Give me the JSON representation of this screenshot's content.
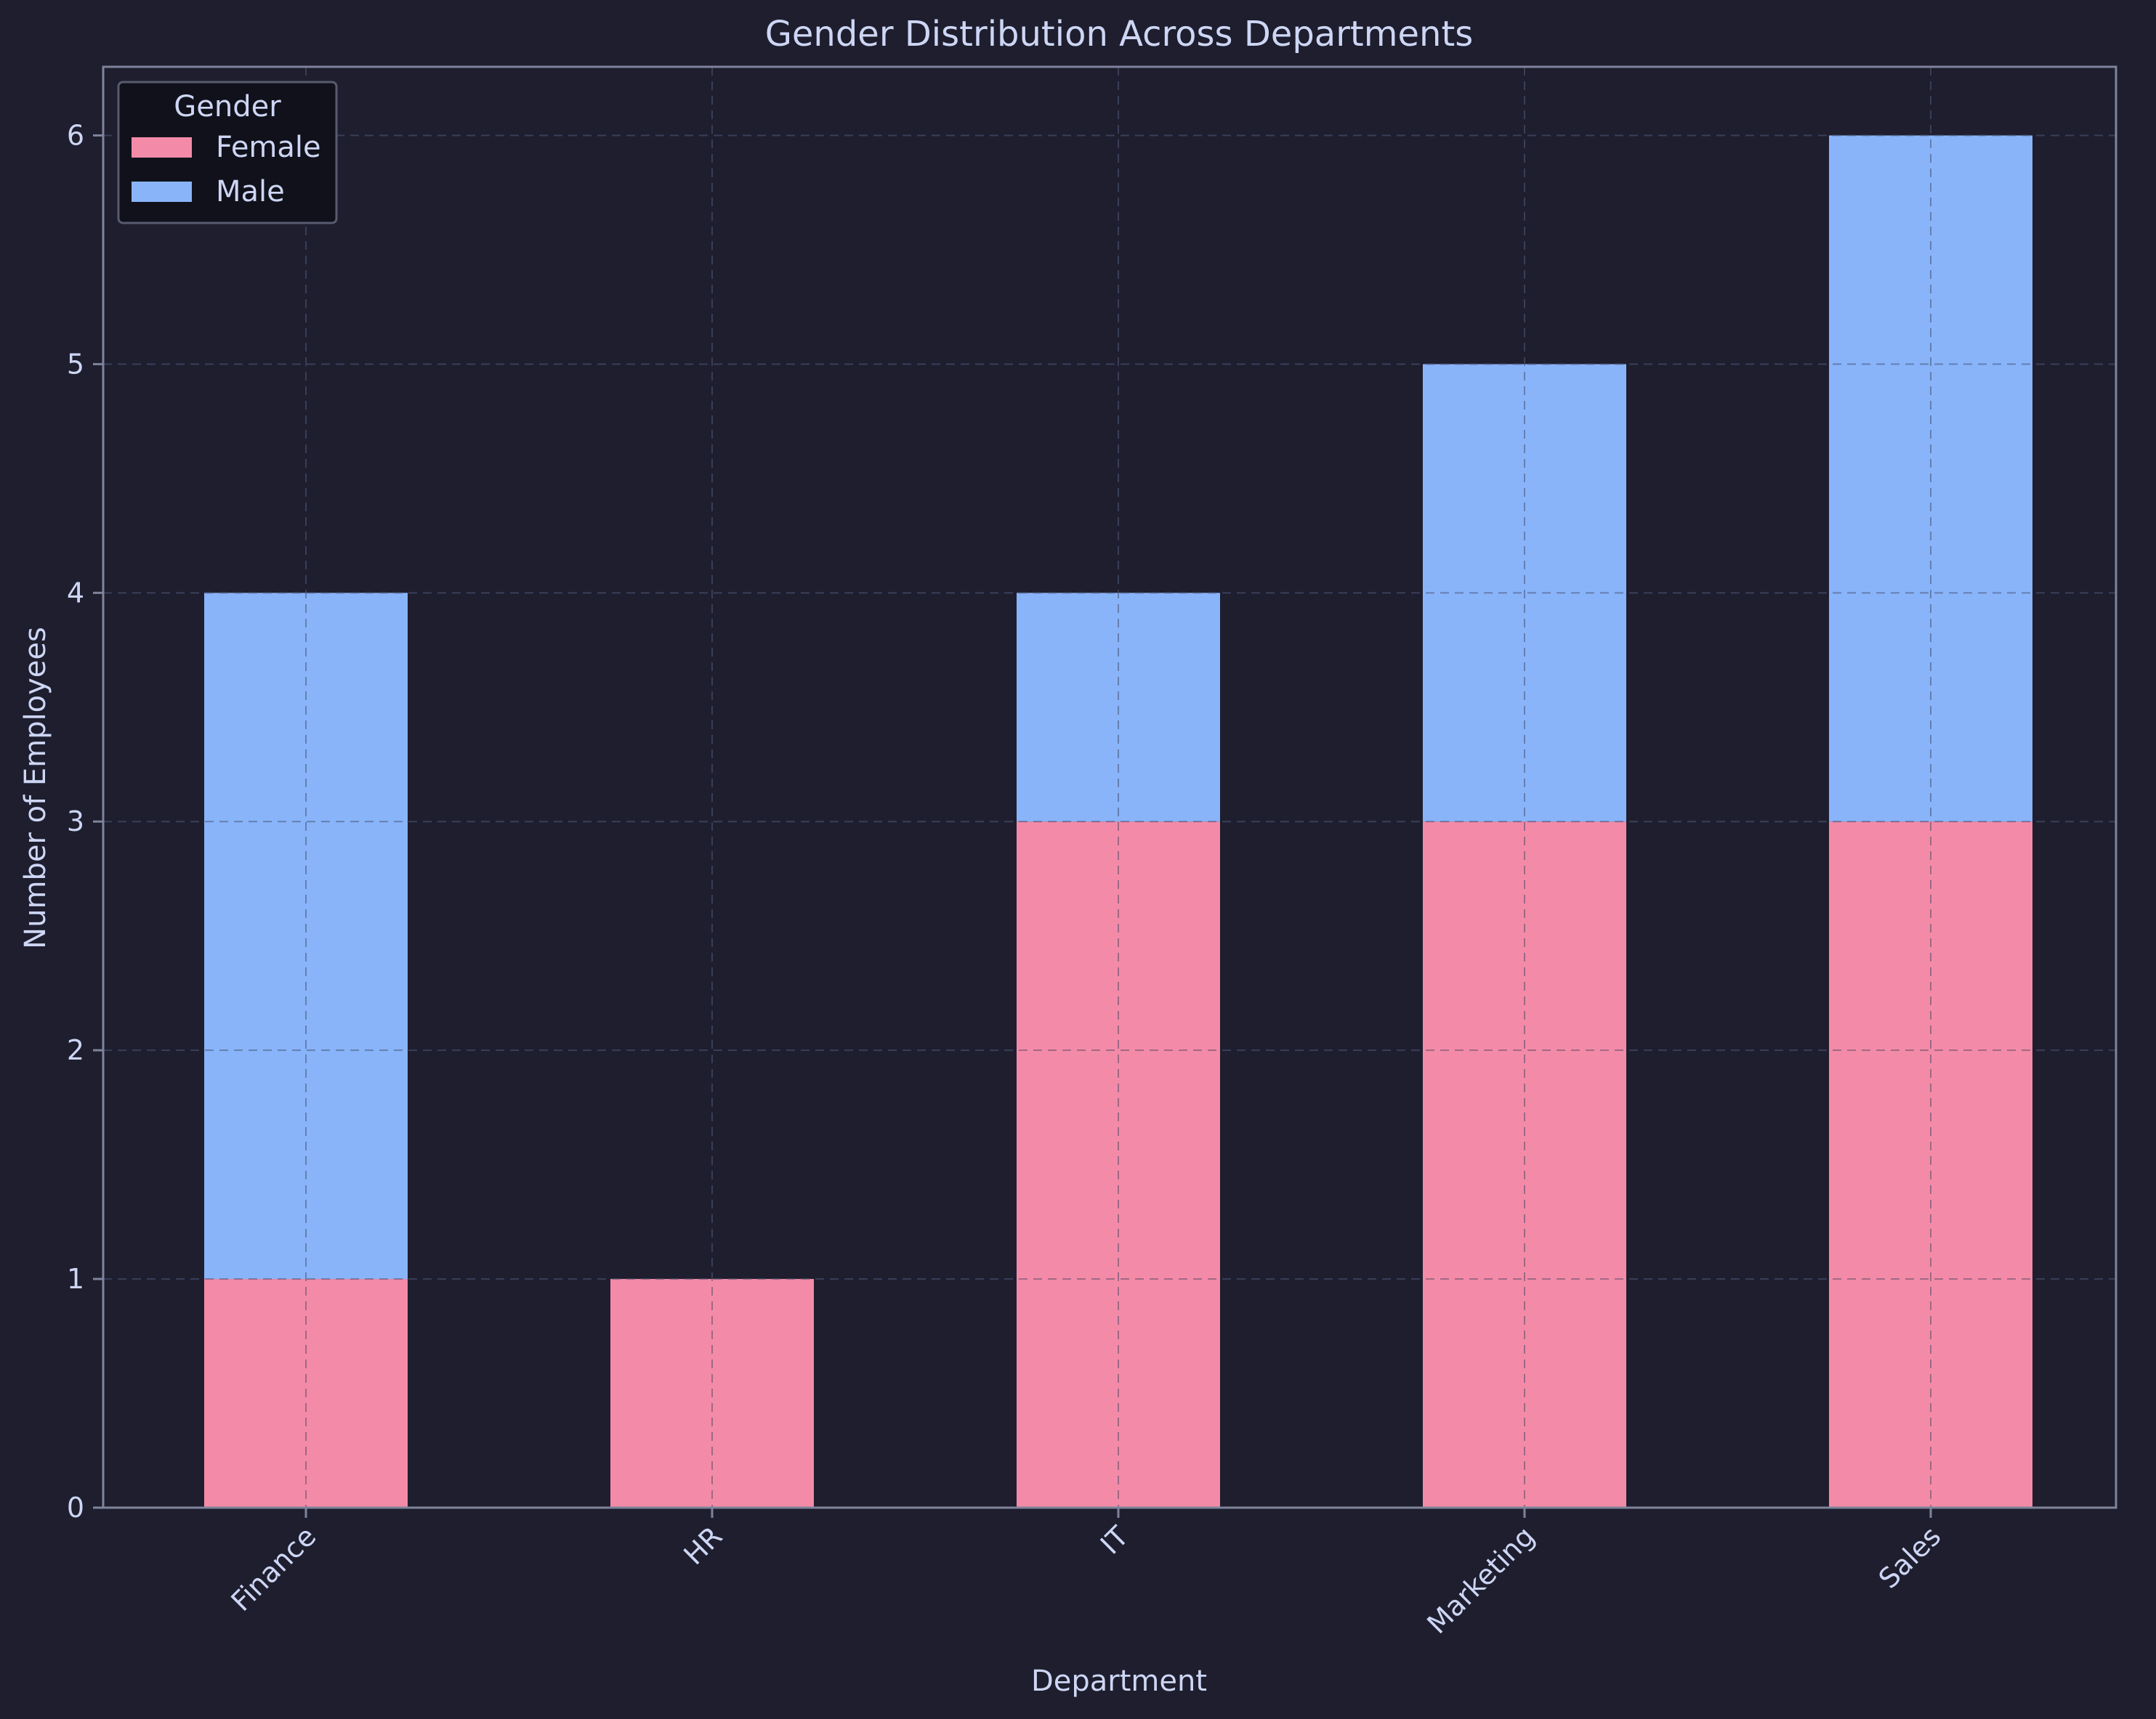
{
  "chart_data": {
    "type": "bar",
    "stacked": true,
    "title": "Gender Distribution Across Departments",
    "xlabel": "Department",
    "ylabel": "Number of Employees",
    "categories": [
      "Finance",
      "HR",
      "IT",
      "Marketing",
      "Sales"
    ],
    "series": [
      {
        "name": "Female",
        "values": [
          1,
          1,
          3,
          3,
          3
        ],
        "color": "#f38ba8"
      },
      {
        "name": "Male",
        "values": [
          3,
          0,
          1,
          2,
          3
        ],
        "color": "#89b4fa"
      }
    ],
    "ylim": [
      0,
      6.3
    ],
    "yticks": [
      0,
      1,
      2,
      3,
      4,
      5,
      6
    ],
    "grid": true,
    "legend": {
      "title": "Gender",
      "position": "top-left"
    },
    "colors": {
      "background": "#1e1e2e",
      "text": "#cdd6f4",
      "axis": "#7f849c",
      "legend_bg": "#11111b"
    }
  }
}
